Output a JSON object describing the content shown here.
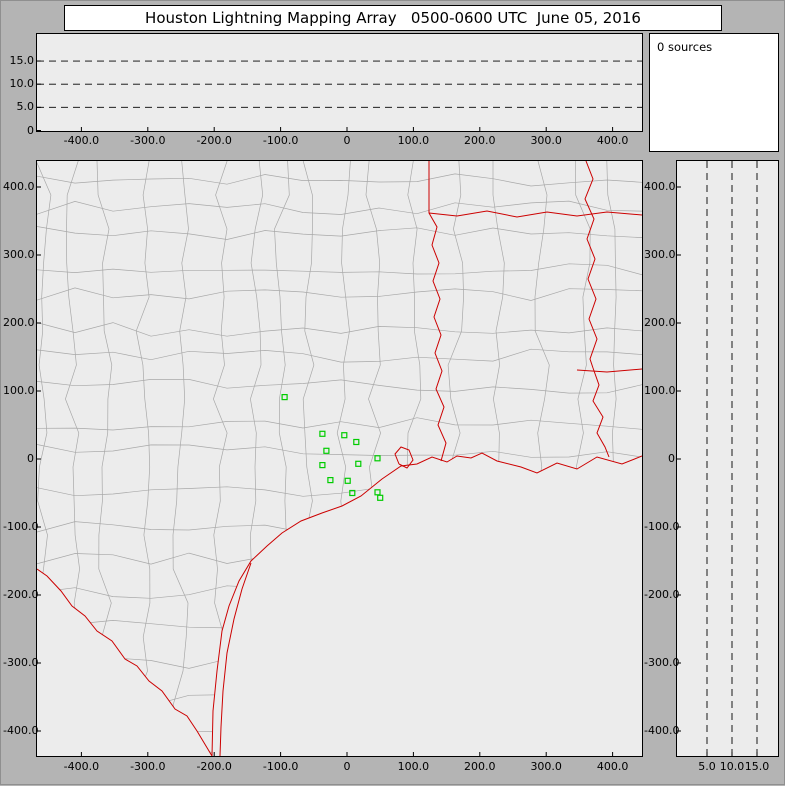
{
  "title": "Houston Lightning Mapping Array   0500-0600 UTC  June 05, 2016",
  "sources_label": "0 sources",
  "colors": {
    "frame": "#b4b4b4",
    "panel_bg": "#ececec",
    "panel_border": "#000000",
    "county_lines": "#a8a8a8",
    "state_lines": "#cc0000",
    "station_marker": "#00cc00",
    "dashed_grid": "#000000"
  },
  "chart_data": [
    {
      "id": "alt_vs_ew",
      "type": "scatter",
      "x_ticks": [
        "-400.0",
        "-300.0",
        "-200.0",
        "-100.0",
        "0",
        "100.0",
        "200.0",
        "300.0",
        "400.0"
      ],
      "x_range_km": [
        -465,
        445
      ],
      "y_ticks": [
        "0",
        "5.0",
        "10.0",
        "15.0"
      ],
      "y_range_km": [
        0,
        21
      ],
      "y_gridlines": [
        5,
        10,
        15
      ],
      "grid_style": "dashed",
      "points": []
    },
    {
      "id": "source_count",
      "type": "text",
      "text": "0 sources"
    },
    {
      "id": "map",
      "type": "scatter",
      "x_ticks": [
        "-400.0",
        "-300.0",
        "-200.0",
        "-100.0",
        "0",
        "100.0",
        "200.0",
        "300.0",
        "400.0"
      ],
      "y_ticks": [
        "400.0",
        "300.0",
        "200.0",
        "100.0",
        "0",
        "-100.0",
        "-200.0",
        "-300.0",
        "-400.0"
      ],
      "x_range_km": [
        -465,
        445
      ],
      "y_range_km": [
        -440,
        440
      ],
      "points": [],
      "station_markers_km": [
        [
          -94,
          91
        ],
        [
          -37,
          37
        ],
        [
          -4,
          35
        ],
        [
          14,
          25
        ],
        [
          -31,
          12
        ],
        [
          -37,
          -9
        ],
        [
          17,
          -7
        ],
        [
          46,
          1
        ],
        [
          -25,
          -31
        ],
        [
          1,
          -32
        ],
        [
          8,
          -50
        ],
        [
          46,
          -49
        ],
        [
          50,
          -57
        ]
      ],
      "map_layers": [
        "county-outlines",
        "state-borders",
        "coastline",
        "lma-stations"
      ]
    },
    {
      "id": "alt_vs_ns",
      "type": "scatter",
      "x_ticks": [
        "5.0",
        "10.0",
        "15.0"
      ],
      "x_range_km": [
        0,
        20
      ],
      "x_gridlines": [
        5,
        10,
        15
      ],
      "grid_style": "dashed",
      "y_ticks": [
        "400.0",
        "300.0",
        "200.0",
        "100.0",
        "0",
        "-100.0",
        "-200.0",
        "-300.0",
        "-400.0"
      ],
      "y_range_km": [
        -440,
        440
      ],
      "points": []
    }
  ]
}
